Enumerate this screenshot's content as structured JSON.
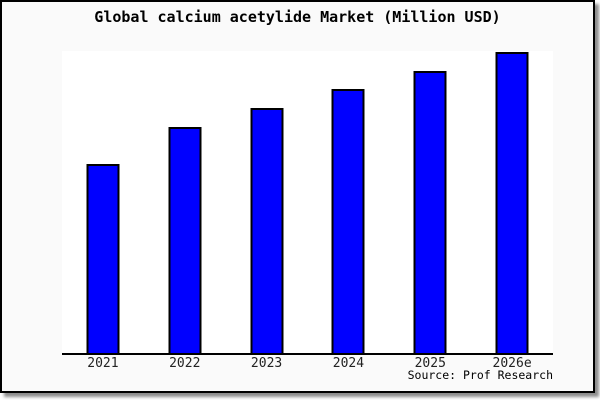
{
  "title": "Global calcium acetylide Market (Million USD)",
  "source_credit": "Source: Prof Research",
  "colors": {
    "figure_background": "#fafafa",
    "plot_background": "#ffffff",
    "bar_fill": "#0000ff",
    "bar_border": "#000000",
    "axis_line": "#000000",
    "frame_border": "#000000",
    "tick_label": "#222222"
  },
  "chart_data": {
    "type": "bar",
    "title": "Global calcium acetylide Market (Million USD)",
    "categories": [
      "2021",
      "2022",
      "2023",
      "2024",
      "2025",
      "2026e"
    ],
    "values": [
      62.6,
      74.8,
      81.1,
      87.4,
      93.4,
      99.7
    ],
    "values_unit": "relative bar height, % of plot height (no numeric y-axis shown in figure)",
    "xlabel": "",
    "ylabel": "",
    "ylim": [
      0,
      100
    ],
    "grid": false,
    "legend": false,
    "source": "Source: Prof Research"
  }
}
